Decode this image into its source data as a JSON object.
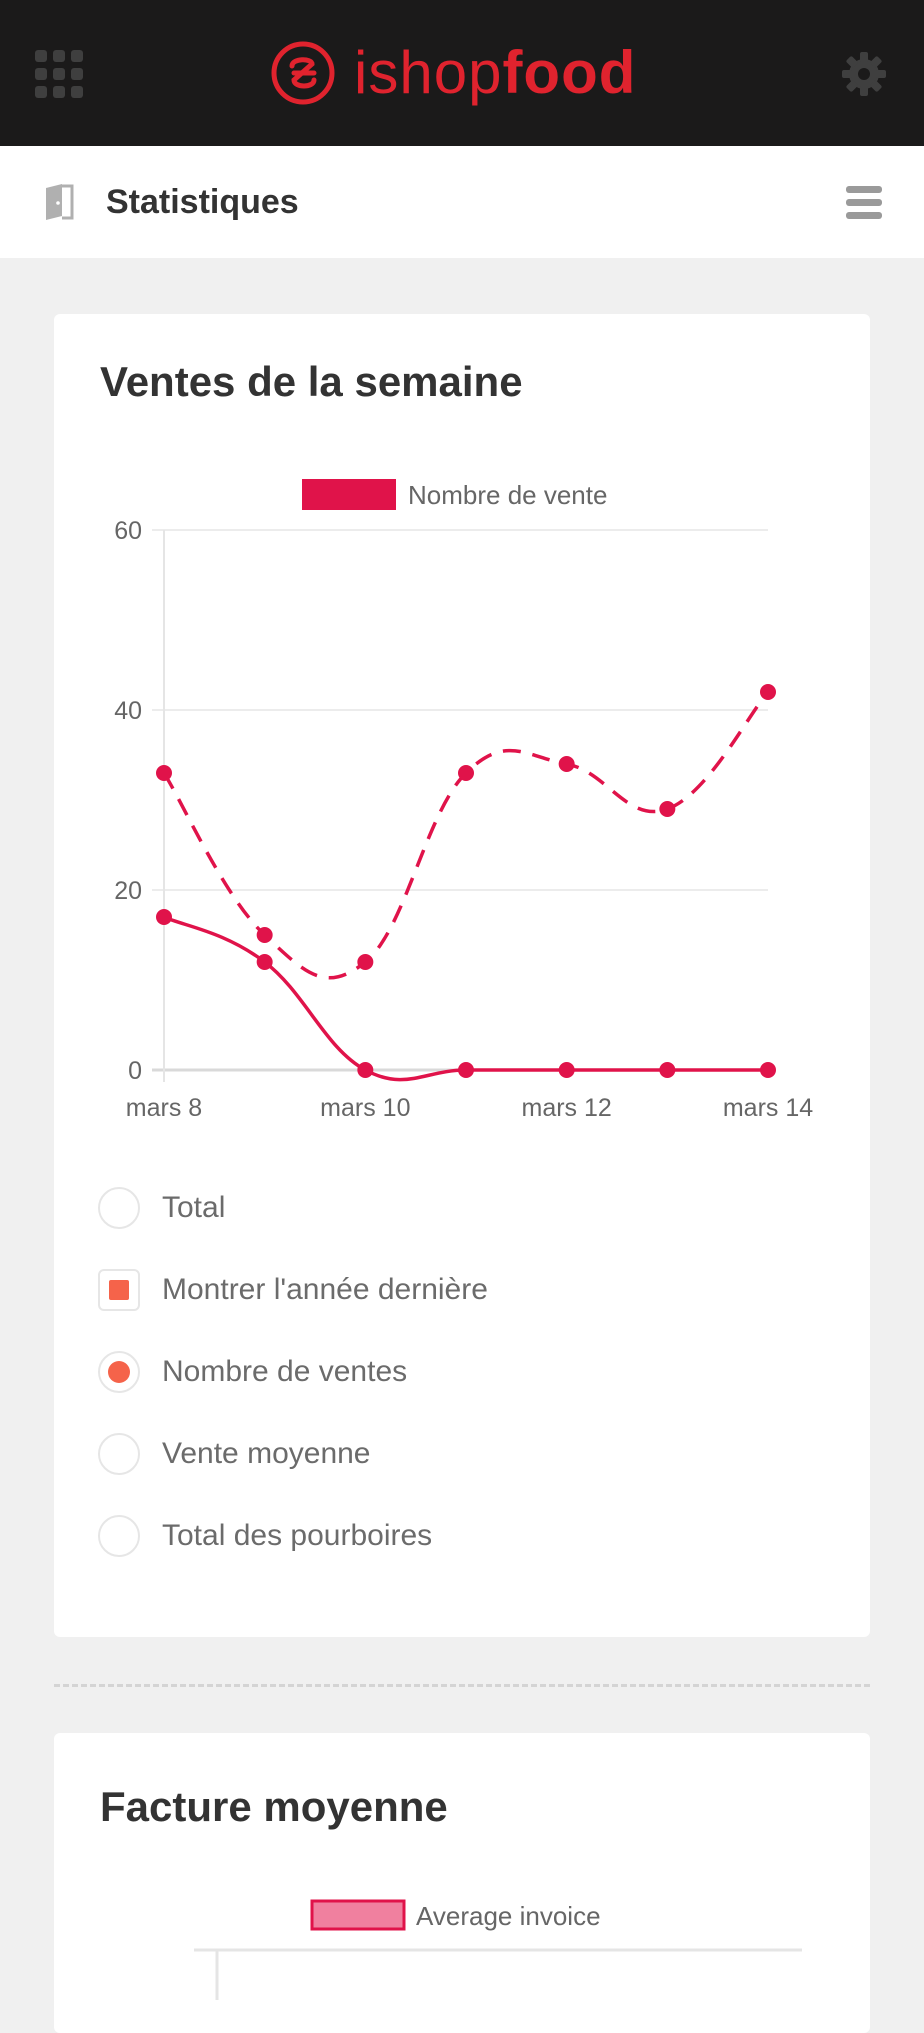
{
  "header": {
    "logo_light": "ishop",
    "logo_bold": "food",
    "colors": {
      "background": "#1b1a1a",
      "brand": "#e0232e"
    },
    "icons": {
      "left": "apps-grid-icon",
      "right": "gear-icon"
    }
  },
  "subheader": {
    "title": "Statistiques",
    "icons": {
      "left": "document-icon",
      "right": "hamburger-menu-icon"
    }
  },
  "cards": {
    "weekly_sales": {
      "title": "Ventes de la semaine",
      "options": [
        {
          "label": "Total",
          "type": "radio",
          "checked": false
        },
        {
          "label": "Montrer l'année dernière",
          "type": "checkbox",
          "checked": true
        },
        {
          "label": "Nombre de ventes",
          "type": "radio",
          "checked": true
        },
        {
          "label": "Vente moyenne",
          "type": "radio",
          "checked": false
        },
        {
          "label": "Total des pourboires",
          "type": "radio",
          "checked": false
        }
      ]
    },
    "average_invoice": {
      "title": "Facture moyenne",
      "legend": "Average invoice"
    }
  },
  "chart_data": [
    {
      "type": "line",
      "title": "",
      "xlabel": "",
      "ylabel": "",
      "x": [
        "mars 8",
        "mars 9",
        "mars 10",
        "mars 11",
        "mars 12",
        "mars 13",
        "mars 14"
      ],
      "x_tick_labels": [
        "mars 8",
        "mars 10",
        "mars 12",
        "mars 14"
      ],
      "y_ticks": [
        "0",
        "20",
        "40",
        "60"
      ],
      "ylim": [
        0,
        60
      ],
      "legend": "top-center",
      "grid": true,
      "series": [
        {
          "name": "Nombre de vente",
          "values": [
            17,
            12,
            0,
            0,
            0,
            0,
            0
          ],
          "style": "solid",
          "color": "#e0134a"
        },
        {
          "values": [
            33,
            15,
            12,
            33,
            34,
            29,
            42
          ],
          "style": "dashed",
          "color": "#e0134a"
        }
      ]
    },
    {
      "type": "line",
      "legend": "top-center",
      "series": [
        {
          "name": "Average invoice",
          "values": [],
          "color": "#f0809f"
        }
      ]
    }
  ]
}
